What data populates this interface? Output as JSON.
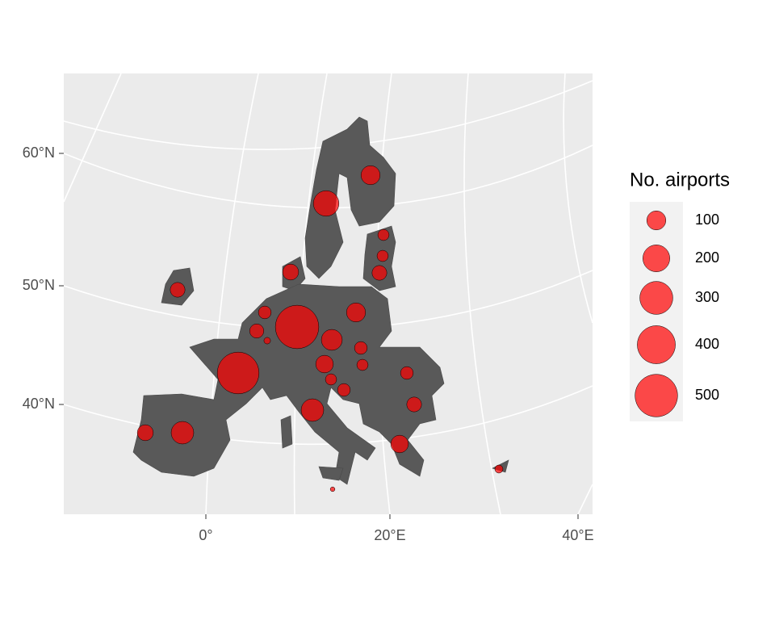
{
  "map": {
    "axes": {
      "y_labels": [
        "60°N",
        "50°N",
        "40°N"
      ],
      "x_labels": [
        "0°",
        "20°E",
        "40°E"
      ]
    },
    "legend": {
      "title": "No. airports",
      "sizes": [
        100,
        200,
        300,
        400,
        500
      ]
    },
    "bubble_color": "#ff0000",
    "bubbles": [
      520,
      480,
      140,
      70,
      140,
      180,
      100,
      70,
      60,
      100,
      45,
      55,
      12,
      120,
      85,
      45,
      35,
      35,
      45,
      45,
      60,
      85,
      35,
      35,
      60,
      18,
      6
    ]
  }
}
